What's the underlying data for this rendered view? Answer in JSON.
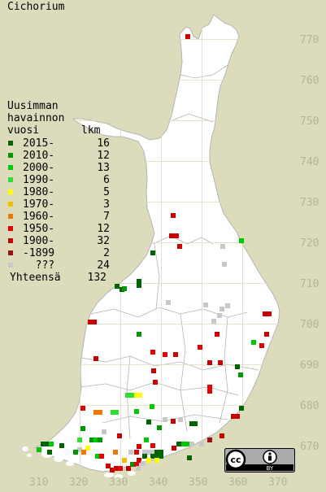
{
  "title": "Cichorium",
  "legend": {
    "heading": [
      "Uusimman",
      "havainnon",
      "vuosi"
    ],
    "count_header": "lkm",
    "items": [
      {
        "label": "2015-",
        "count": "16",
        "color": "#006400"
      },
      {
        "label": "2010-",
        "count": "12",
        "color": "#009600"
      },
      {
        "label": "2000-",
        "count": "13",
        "color": "#00c800"
      },
      {
        "label": "1990-",
        "count": "6",
        "color": "#32dc32"
      },
      {
        "label": "1980-",
        "count": "5",
        "color": "#ffff00"
      },
      {
        "label": "1970-",
        "count": "3",
        "color": "#f0be00"
      },
      {
        "label": "1960-",
        "count": "7",
        "color": "#f07800"
      },
      {
        "label": "1950-",
        "count": "12",
        "color": "#e60000"
      },
      {
        "label": "1900-",
        "count": "32",
        "color": "#c80000"
      },
      {
        "label": "-1899",
        "count": "2",
        "color": "#961414"
      },
      {
        "label": "???",
        "count": "24",
        "color": "#c8c8c8"
      }
    ],
    "total_label": "Yhteensä",
    "total_count": "132"
  },
  "axes": {
    "northing_labels": [
      "770",
      "760",
      "750",
      "740",
      "730",
      "720",
      "710",
      "700",
      "690",
      "680",
      "670"
    ],
    "easting_labels": [
      "310",
      "320",
      "330",
      "340",
      "350",
      "360",
      "370"
    ]
  },
  "license_badge": {
    "cc_text": "cc",
    "by_text": "BY"
  },
  "colors": {
    "background": "#dcdcbc",
    "land": "#ffffff",
    "grid": "#dcdcbc",
    "border": "#b4b4b4",
    "label": "#b4b496"
  }
}
